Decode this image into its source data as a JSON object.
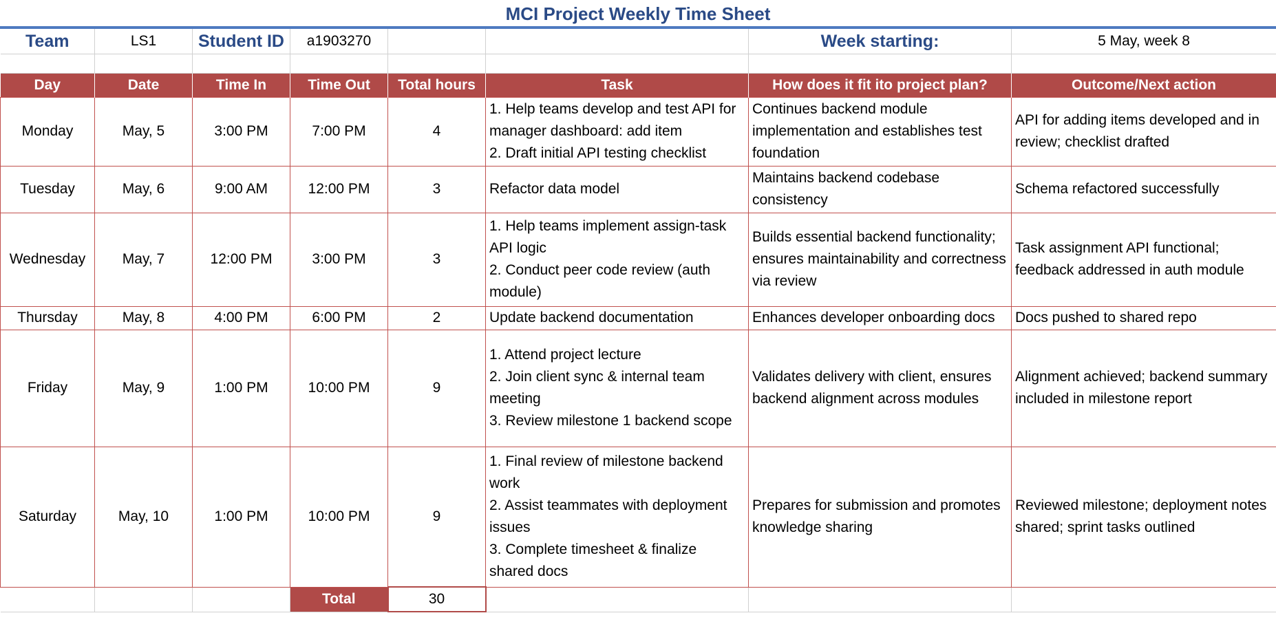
{
  "title": "MCI Project Weekly Time Sheet",
  "meta": {
    "team_label": "Team",
    "team_value": "LS1",
    "student_label": "Student ID",
    "student_value": "a1903270",
    "week_label": "Week starting:",
    "week_value": "5 May, week 8"
  },
  "columns": [
    "Day",
    "Date",
    "Time In",
    "Time Out",
    "Total hours",
    "Task",
    "How does it fit ito project plan?",
    "Outcome/Next action"
  ],
  "rows": [
    {
      "day": "Monday",
      "date": "May, 5",
      "time_in": "3:00 PM",
      "time_out": "7:00 PM",
      "hours": "4",
      "task": [
        "1. Help teams develop and test API for manager dashboard: add item",
        "2. Draft initial API testing checklist"
      ],
      "fit": "Continues backend module implementation and establishes test foundation",
      "outcome": "API for adding items developed and in review; checklist drafted"
    },
    {
      "day": "Tuesday",
      "date": "May, 6",
      "time_in": "9:00 AM",
      "time_out": "12:00 PM",
      "hours": "3",
      "task": [
        "Refactor data model"
      ],
      "fit": "Maintains backend codebase consistency",
      "outcome": "Schema refactored successfully"
    },
    {
      "day": "Wednesday",
      "date": "May, 7",
      "time_in": "12:00 PM",
      "time_out": "3:00 PM",
      "hours": "3",
      "task": [
        "1. Help teams implement assign-task API logic",
        "2. Conduct peer code review (auth module)"
      ],
      "fit": "Builds essential backend functionality; ensures maintainability and correctness via review",
      "outcome": "Task assignment API functional; feedback addressed in auth module"
    },
    {
      "day": "Thursday",
      "date": "May, 8",
      "time_in": "4:00 PM",
      "time_out": "6:00 PM",
      "hours": "2",
      "task": [
        "Update backend documentation"
      ],
      "fit": "Enhances developer onboarding docs",
      "outcome": "Docs pushed to shared repo"
    },
    {
      "day": "Friday",
      "date": "May, 9",
      "time_in": "1:00 PM",
      "time_out": "10:00 PM",
      "hours": "9",
      "task": [
        "1. Attend project lecture",
        "2. Join client sync & internal team meeting",
        "3. Review milestone 1 backend scope"
      ],
      "fit": "Validates delivery with client, ensures backend alignment across modules",
      "outcome": "Alignment achieved; backend summary included in milestone report"
    },
    {
      "day": "Saturday",
      "date": "May, 10",
      "time_in": "1:00 PM",
      "time_out": "10:00 PM",
      "hours": "9",
      "task": [
        "1. Final review of milestone backend work",
        "2. Assist teammates with deployment issues",
        "3. Complete timesheet & finalize shared docs"
      ],
      "fit": "Prepares for submission and promotes knowledge sharing",
      "outcome": "Reviewed milestone; deployment notes shared; sprint tasks outlined"
    }
  ],
  "total": {
    "label": "Total",
    "value": "30"
  }
}
